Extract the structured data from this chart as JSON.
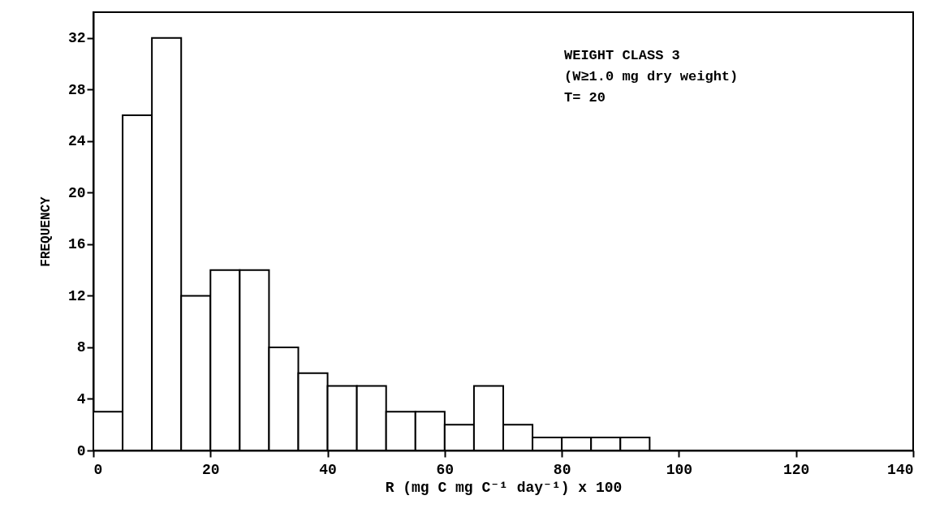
{
  "chart_data": {
    "type": "histogram",
    "xlabel": "R (mg C mg C⁻¹ day⁻¹) x 100",
    "ylabel": "FREQUENCY",
    "bins": [
      0,
      5,
      10,
      15,
      20,
      25,
      30,
      35,
      40,
      45,
      50,
      55,
      60,
      65,
      70,
      75,
      80,
      85,
      90,
      95
    ],
    "values": [
      3,
      26,
      32,
      12,
      14,
      14,
      8,
      6,
      5,
      5,
      3,
      3,
      2,
      5,
      2,
      1,
      1,
      1,
      1
    ],
    "color": "#ffffff",
    "xlim": [
      0,
      140
    ],
    "xticks": [
      0,
      20,
      40,
      60,
      80,
      100,
      120,
      140
    ],
    "ylim": [
      0,
      34
    ],
    "yticks": [
      0,
      4,
      8,
      12,
      16,
      20,
      24,
      28,
      32
    ],
    "annotations": [
      "WEIGHT CLASS 3",
      "(W≥1.0 mg dry weight)",
      "T= 20"
    ],
    "grid": false
  }
}
